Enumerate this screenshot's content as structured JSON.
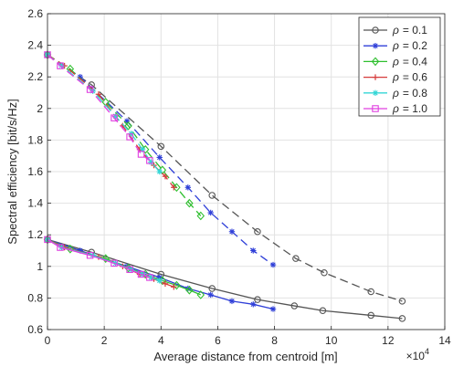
{
  "chart_data": {
    "type": "line",
    "xlabel": "Average distance from centroid [m]",
    "ylabel": "Spectral efficiency [bit/s/Hz]",
    "x_exponent_label": "×10",
    "x_exponent_power": "4",
    "xlim": [
      0,
      14
    ],
    "ylim": [
      0.6,
      2.6
    ],
    "x_unit_multiplier": 10000,
    "xticks": [
      "0",
      "2",
      "4",
      "6",
      "8",
      "10",
      "12",
      "14"
    ],
    "yticks": [
      "0.6",
      "0.8",
      "1",
      "1.2",
      "1.4",
      "1.6",
      "1.8",
      "2",
      "2.2",
      "2.4",
      "2.6"
    ],
    "grid": true,
    "legend_position": "top-right",
    "series": [
      {
        "name": "ρ = 0.1",
        "legend_symbol": "ρ",
        "legend_value": "= 0.1",
        "color": "#555555",
        "marker": "circle",
        "upper": [
          [
            0,
            2.34
          ],
          [
            1.55,
            2.15
          ],
          [
            4.0,
            1.76
          ],
          [
            5.8,
            1.45
          ],
          [
            7.4,
            1.22
          ],
          [
            8.75,
            1.05
          ],
          [
            9.75,
            0.96
          ],
          [
            11.4,
            0.84
          ],
          [
            12.5,
            0.78
          ]
        ],
        "lower": [
          [
            0,
            1.17
          ],
          [
            1.55,
            1.09
          ],
          [
            4.0,
            0.95
          ],
          [
            5.8,
            0.86
          ],
          [
            7.4,
            0.79
          ],
          [
            8.7,
            0.75
          ],
          [
            9.7,
            0.72
          ],
          [
            11.4,
            0.69
          ],
          [
            12.5,
            0.67
          ]
        ]
      },
      {
        "name": "ρ = 0.2",
        "legend_symbol": "ρ",
        "legend_value": "= 0.2",
        "color": "#2f3fd8",
        "marker": "asterisk",
        "upper": [
          [
            0,
            2.34
          ],
          [
            1.15,
            2.2
          ],
          [
            2.8,
            1.92
          ],
          [
            3.95,
            1.69
          ],
          [
            4.95,
            1.5
          ],
          [
            5.75,
            1.34
          ],
          [
            6.5,
            1.22
          ],
          [
            7.25,
            1.1
          ],
          [
            7.95,
            1.01
          ]
        ],
        "lower": [
          [
            0,
            1.17
          ],
          [
            1.15,
            1.1
          ],
          [
            2.8,
            1.0
          ],
          [
            3.95,
            0.93
          ],
          [
            4.95,
            0.86
          ],
          [
            5.75,
            0.82
          ],
          [
            6.5,
            0.78
          ],
          [
            7.25,
            0.76
          ],
          [
            7.95,
            0.73
          ]
        ]
      },
      {
        "name": "ρ = 0.4",
        "legend_symbol": "ρ",
        "legend_value": "= 0.4",
        "color": "#2fbf2f",
        "marker": "diamond",
        "upper": [
          [
            0,
            2.34
          ],
          [
            0.8,
            2.25
          ],
          [
            2.05,
            2.04
          ],
          [
            2.85,
            1.89
          ],
          [
            3.45,
            1.74
          ],
          [
            4.05,
            1.61
          ],
          [
            4.55,
            1.5
          ],
          [
            5.0,
            1.4
          ],
          [
            5.4,
            1.32
          ]
        ],
        "lower": [
          [
            0,
            1.17
          ],
          [
            0.8,
            1.11
          ],
          [
            2.05,
            1.05
          ],
          [
            2.85,
            0.99
          ],
          [
            3.45,
            0.95
          ],
          [
            4.05,
            0.91
          ],
          [
            4.55,
            0.88
          ],
          [
            5.0,
            0.85
          ],
          [
            5.4,
            0.82
          ]
        ]
      },
      {
        "name": "ρ = 0.6",
        "legend_symbol": "ρ",
        "legend_value": "= 0.6",
        "color": "#d63a3a",
        "marker": "plus",
        "upper": [
          [
            0,
            2.34
          ],
          [
            0.6,
            2.27
          ],
          [
            1.8,
            2.09
          ],
          [
            2.65,
            1.89
          ],
          [
            3.25,
            1.74
          ],
          [
            3.75,
            1.64
          ],
          [
            4.15,
            1.57
          ],
          [
            4.45,
            1.5
          ]
        ],
        "lower": [
          [
            0,
            1.17
          ],
          [
            0.6,
            1.12
          ],
          [
            1.8,
            1.06
          ],
          [
            2.65,
            1.0
          ],
          [
            3.25,
            0.95
          ],
          [
            3.75,
            0.92
          ],
          [
            4.15,
            0.89
          ],
          [
            4.45,
            0.87
          ]
        ]
      },
      {
        "name": "ρ = 0.8",
        "legend_symbol": "ρ",
        "legend_value": "= 0.8",
        "color": "#33d6d6",
        "marker": "asterisk",
        "upper": [
          [
            0,
            2.34
          ],
          [
            0.5,
            2.27
          ],
          [
            1.6,
            2.11
          ],
          [
            2.4,
            1.95
          ],
          [
            2.95,
            1.84
          ],
          [
            3.35,
            1.74
          ],
          [
            3.65,
            1.66
          ],
          [
            3.95,
            1.6
          ]
        ],
        "lower": [
          [
            0,
            1.17
          ],
          [
            0.5,
            1.12
          ],
          [
            1.6,
            1.07
          ],
          [
            2.4,
            1.02
          ],
          [
            2.95,
            0.98
          ],
          [
            3.35,
            0.95
          ],
          [
            3.65,
            0.93
          ],
          [
            3.95,
            0.91
          ]
        ]
      },
      {
        "name": "ρ = 1.0",
        "legend_symbol": "ρ",
        "legend_value": "= 1.0",
        "color": "#e040e0",
        "marker": "square",
        "upper": [
          [
            0,
            2.34
          ],
          [
            0.45,
            2.27
          ],
          [
            1.5,
            2.12
          ],
          [
            2.35,
            1.94
          ],
          [
            2.9,
            1.82
          ],
          [
            3.3,
            1.71
          ],
          [
            3.6,
            1.67
          ]
        ],
        "lower": [
          [
            0,
            1.17
          ],
          [
            0.45,
            1.12
          ],
          [
            1.5,
            1.07
          ],
          [
            2.35,
            1.02
          ],
          [
            2.9,
            0.98
          ],
          [
            3.3,
            0.95
          ],
          [
            3.6,
            0.93
          ]
        ]
      }
    ]
  }
}
